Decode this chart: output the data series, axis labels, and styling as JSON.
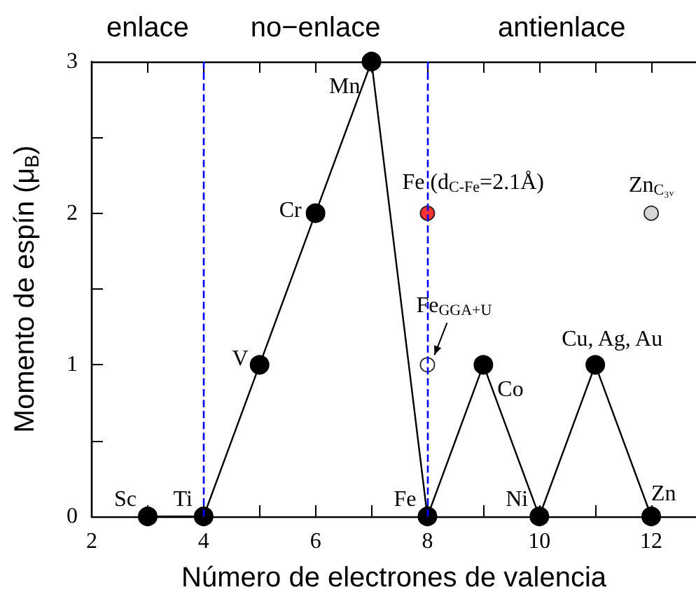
{
  "chart_data": {
    "type": "line",
    "xlabel": "Número de electrones de valencia",
    "ylabel": "Momento de espín (μ$_{B}$)",
    "xlim": [
      2,
      12.8
    ],
    "xticks": [
      2,
      {
        "value": 3,
        "label": null
      },
      4,
      {
        "value": 5,
        "label": null
      },
      6,
      {
        "value": 7,
        "label": null
      },
      8,
      {
        "value": 9,
        "label": null
      },
      10,
      {
        "value": 11,
        "label": null
      },
      12
    ],
    "ylim": [
      0,
      3
    ],
    "yticks": [
      0,
      {
        "value": 0.5,
        "label": null
      },
      1,
      {
        "value": 1.5,
        "label": null
      },
      2,
      {
        "value": 2.5,
        "label": null
      },
      3
    ],
    "marker": "circle",
    "series": [
      {
        "color": "#000000",
        "x": [
          3,
          4,
          5,
          6,
          7,
          8,
          9,
          10,
          11,
          12
        ],
        "values": [
          0,
          0,
          1,
          2,
          3,
          0,
          1,
          0,
          1,
          0
        ]
      },
      {
        "type": "scatter",
        "color": "#ff0000",
        "x": [
          8
        ],
        "values": [
          2
        ]
      },
      {
        "type": "scatter",
        "color": "#ffffff",
        "x": [
          8
        ],
        "values": [
          1
        ]
      },
      {
        "type": "scatter",
        "color": "#cccccc",
        "x": [
          12
        ],
        "values": [
          2
        ]
      }
    ],
    "ref_lines": [
      {
        "axis": "x",
        "value": 4,
        "color": "#0000ff",
        "line_style": "dashed"
      },
      {
        "axis": "x",
        "value": 8,
        "color": "#0000ff",
        "line_style": "dashed"
      }
    ],
    "annotations": [
      "enlace",
      "no−enlace",
      "antienlace",
      {
        "text": "Sc",
        "x": 3,
        "y": 0
      },
      {
        "text": "Ti",
        "x": 4,
        "y": 0
      },
      {
        "text": "V",
        "x": 5,
        "y": 1
      },
      {
        "text": "Cr",
        "x": 6,
        "y": 2
      },
      {
        "text": "Mn",
        "x": 7,
        "y": 3
      },
      {
        "text": "Fe",
        "x": 8,
        "y": 0
      },
      {
        "text": "Co",
        "x": 9,
        "y": 1
      },
      {
        "text": "Ni",
        "x": 10,
        "y": 0
      },
      {
        "text": "Cu, Ag, Au",
        "x": 11,
        "y": 1
      },
      {
        "text": "Zn",
        "x": 12,
        "y": 0
      },
      {
        "text": "Fe (d$_{C-Fe}$=2.1Å)",
        "x": 8,
        "y": 2
      },
      {
        "text": "Fe$_{GGA+U}$",
        "x": 8,
        "y": 1
      },
      {
        "text": "Zn$_{C₃ᵥ}$",
        "x": 12,
        "y": 2
      }
    ]
  }
}
